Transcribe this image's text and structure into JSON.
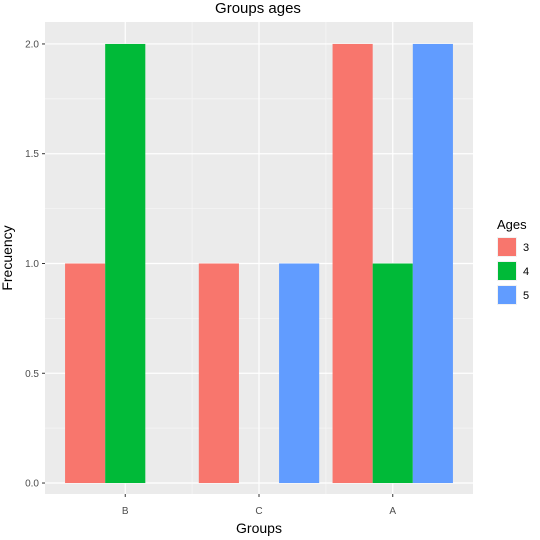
{
  "chart_data": {
    "type": "bar",
    "title": "Groups ages",
    "xlabel": "Groups",
    "ylabel": "Frecuency",
    "categories": [
      "B",
      "C",
      "A"
    ],
    "series": [
      {
        "name": "3",
        "color": "#F8766D",
        "values": [
          1,
          1,
          2
        ]
      },
      {
        "name": "4",
        "color": "#00BA38",
        "values": [
          2,
          0,
          1
        ]
      },
      {
        "name": "5",
        "color": "#619CFF",
        "values": [
          0,
          1,
          2
        ]
      }
    ],
    "ylim": [
      -0.05,
      2.1
    ],
    "yticks": [
      "0.0",
      "0.5",
      "1.0",
      "1.5",
      "2.0"
    ],
    "grid": true,
    "legend": {
      "title": "Ages",
      "position": "right"
    }
  }
}
